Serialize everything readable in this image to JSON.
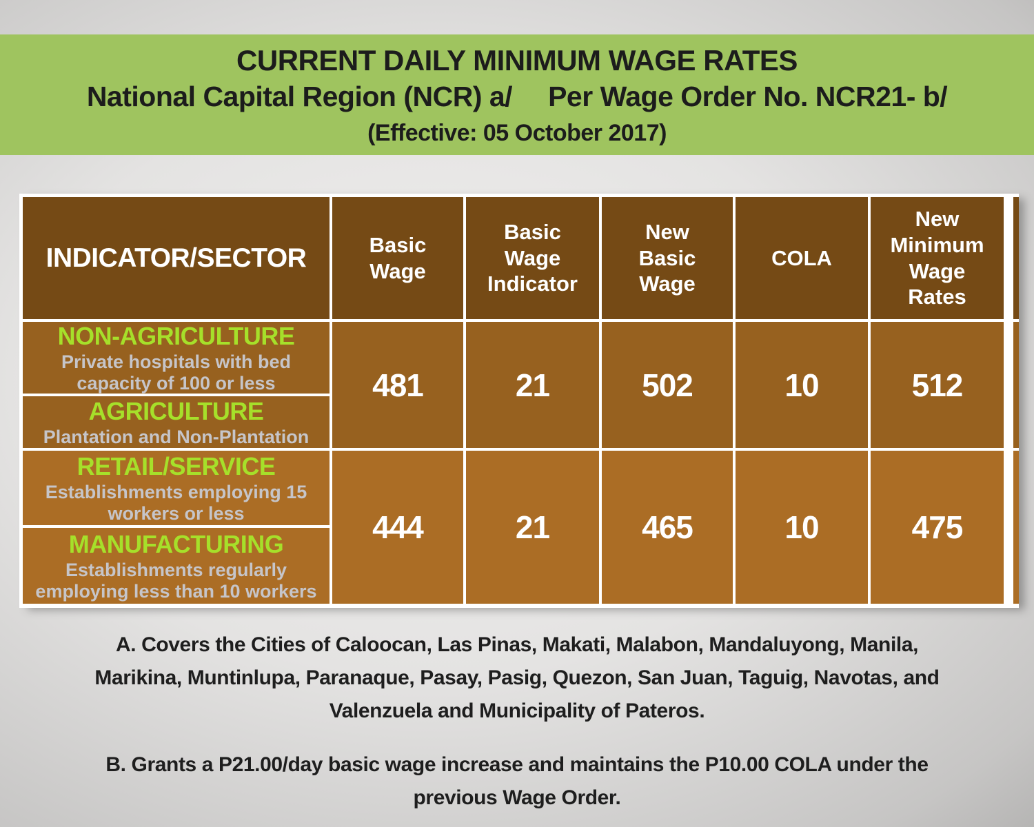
{
  "banner": {
    "title": "CURRENT DAILY MINIMUM WAGE RATES",
    "subtitle_left": "National Capital Region (NCR) a/",
    "subtitle_right": "Per Wage Order No. NCR21- b/",
    "effective": "(Effective: 05 October 2017)",
    "bg_color": "#9fc45f",
    "text_color": "#1c1c1c"
  },
  "table": {
    "headers": [
      "INDICATOR/SECTOR",
      "Basic\nWage",
      "Basic\nWage\nIndicator",
      "New\nBasic\nWage",
      "COLA",
      "New\nMinimum\nWage\nRates"
    ],
    "groups": [
      {
        "sectors": [
          {
            "name": "NON-AGRICULTURE",
            "detail": "Private hospitals with bed capacity of 100 or less"
          },
          {
            "name": "AGRICULTURE",
            "detail": "Plantation and Non-Plantation"
          }
        ],
        "values": [
          "481",
          "21",
          "502",
          "10",
          "512"
        ]
      },
      {
        "sectors": [
          {
            "name": "RETAIL/SERVICE",
            "detail": "Establishments employing 15 workers or less"
          },
          {
            "name": "MANUFACTURING",
            "detail": "Establishments regularly employing less than 10 workers"
          }
        ],
        "values": [
          "444",
          "21",
          "465",
          "10",
          "475"
        ]
      }
    ],
    "colors": {
      "header_brown": "#754a15",
      "group1_brown": "#97611f",
      "group2_brown": "#ab6d25",
      "sector_name_green": "#a6e02a",
      "sector_detail_gray": "#c6c5c9",
      "grid_white": "#ffffff"
    }
  },
  "footnotes": {
    "a": "A. Covers the Cities of Caloocan, Las Pinas, Makati, Malabon, Mandaluyong, Manila,\nMarikina, Muntinlupa, Paranaque, Pasay, Pasig, Quezon, San Juan, Taguig, Navotas, and\nValenzuela and Municipality of Pateros.",
    "b": "B. Grants a P21.00/day basic wage increase and maintains the P10.00 COLA under the\nprevious Wage Order."
  }
}
